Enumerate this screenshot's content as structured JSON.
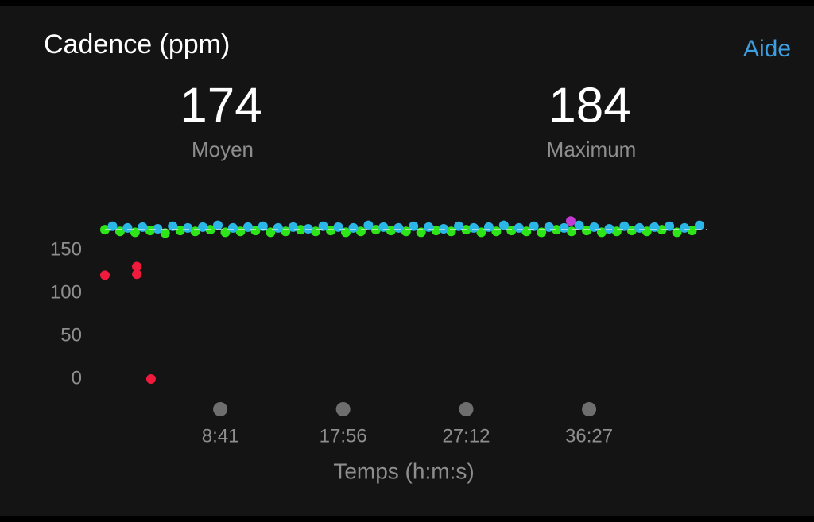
{
  "header": {
    "title": "Cadence (ppm)",
    "help": "Aide"
  },
  "stats": {
    "average": {
      "value": 174,
      "label": "Moyen"
    },
    "maximum": {
      "value": 184,
      "label": "Maximum"
    }
  },
  "chart_data": {
    "type": "scatter",
    "x_label": "Temps (h:m:s)",
    "xlim": [
      0,
      2720
    ],
    "ylim": [
      0,
      190
    ],
    "xticks": [
      {
        "value": 521,
        "label": "8:41"
      },
      {
        "value": 1076,
        "label": "17:56"
      },
      {
        "value": 1632,
        "label": "27:12"
      },
      {
        "value": 2187,
        "label": "36:27"
      }
    ],
    "yticks": [
      0,
      50,
      100,
      150
    ],
    "series": [
      {
        "color": "#2ee51a",
        "x": [
          0,
          68,
          136,
          204,
          272,
          340,
          408,
          476,
          544,
          612,
          680,
          748,
          816,
          884,
          952,
          1020,
          1088,
          1156,
          1224,
          1292,
          1360,
          1428,
          1496,
          1564,
          1632,
          1700,
          1768,
          1836,
          1904,
          1972,
          2040,
          2108,
          2176,
          2244,
          2312,
          2380,
          2448,
          2516,
          2584,
          2652
        ],
        "values": [
          174,
          172,
          171,
          173,
          170,
          173,
          172,
          174,
          171,
          172,
          173,
          171,
          172,
          174,
          172,
          173,
          171,
          172,
          174,
          173,
          172,
          171,
          173,
          172,
          174,
          171,
          172,
          173,
          172,
          171,
          174,
          172,
          173,
          171,
          172,
          173,
          172,
          174,
          171,
          173
        ]
      },
      {
        "color": "#2bb6e8",
        "x": [
          34,
          102,
          170,
          238,
          306,
          374,
          442,
          510,
          578,
          646,
          714,
          782,
          850,
          918,
          986,
          1054,
          1122,
          1190,
          1258,
          1326,
          1394,
          1462,
          1530,
          1598,
          1666,
          1734,
          1802,
          1870,
          1938,
          2006,
          2074,
          2142,
          2210,
          2278,
          2346,
          2414,
          2482,
          2550,
          2618,
          2686
        ],
        "values": [
          178,
          176,
          177,
          175,
          178,
          176,
          177,
          179,
          176,
          177,
          178,
          176,
          177,
          175,
          178,
          177,
          176,
          179,
          177,
          176,
          178,
          177,
          175,
          178,
          176,
          177,
          179,
          176,
          178,
          177,
          176,
          179,
          177,
          175,
          178,
          176,
          177,
          178,
          176,
          179
        ]
      },
      {
        "color": "#c43ad0",
        "x": [
          2104
        ],
        "values": [
          184
        ]
      },
      {
        "color": "#f01a3c",
        "x": [
          0,
          144,
          144,
          208
        ],
        "values": [
          121,
          131,
          122,
          0
        ]
      }
    ]
  }
}
